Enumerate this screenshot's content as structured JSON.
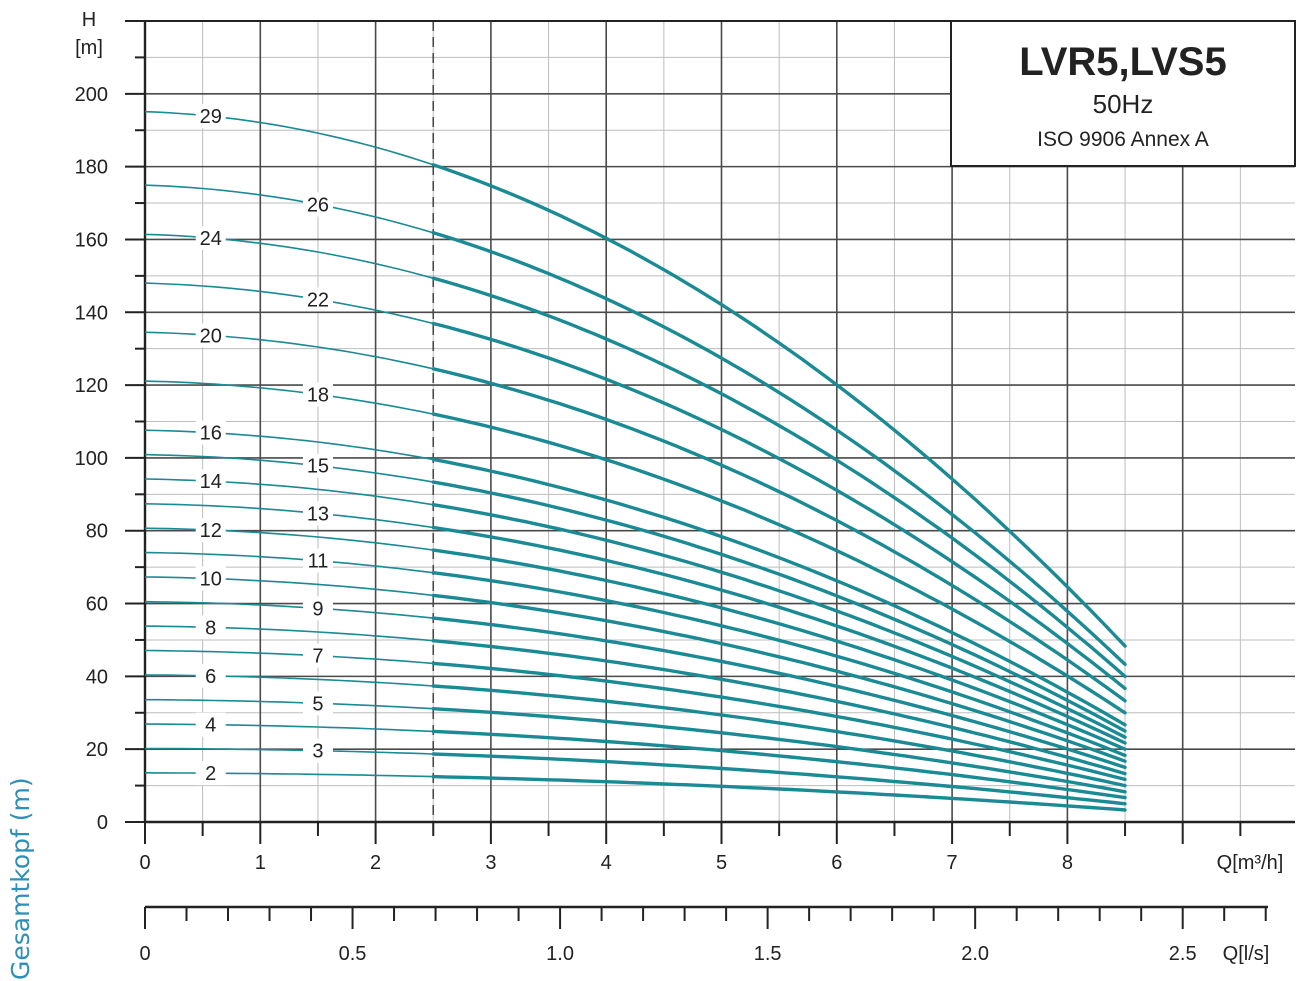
{
  "side_label": "Gesamtkopf (m)",
  "colors": {
    "curve": "#1a8a94",
    "grid": "#4a4a4a",
    "text": "#222222",
    "side_label": "#2e8fb8"
  },
  "title_box": {
    "title": "LVR5,LVS5",
    "frequency": "50Hz",
    "standard": "ISO 9906 Annex A"
  },
  "chart_data": {
    "type": "line",
    "title": "LVR5,LVS5",
    "y_axis": {
      "label_top": "H",
      "label_unit": "[m]",
      "min": 0,
      "max": 200,
      "ticks": [
        0,
        20,
        40,
        60,
        80,
        100,
        120,
        140,
        160,
        180,
        200
      ]
    },
    "x_axis_primary": {
      "label": "Q[m³/h]",
      "ticks": [
        0,
        1,
        2,
        3,
        4,
        5,
        6,
        7,
        8
      ]
    },
    "x_axis_secondary": {
      "label": "Q[l/s]",
      "ticks": [
        "0",
        "0.5",
        "1.0",
        "1.5",
        "2.0",
        "2.5"
      ]
    },
    "grid": true,
    "operating_range_m3h": [
      2.5,
      8.5
    ],
    "series": [
      {
        "name": "2",
        "values": [
          [
            0,
            13.5
          ],
          [
            2.5,
            12.3
          ],
          [
            5,
            9.8
          ],
          [
            8.5,
            3.3
          ]
        ]
      },
      {
        "name": "3",
        "values": [
          [
            0,
            20.2
          ],
          [
            2.5,
            18.5
          ],
          [
            5,
            14.7
          ],
          [
            8.5,
            5.0
          ]
        ]
      },
      {
        "name": "4",
        "values": [
          [
            0,
            26.9
          ],
          [
            2.5,
            24.6
          ],
          [
            5,
            19.6
          ],
          [
            8.5,
            6.7
          ]
        ]
      },
      {
        "name": "5",
        "values": [
          [
            0,
            33.6
          ],
          [
            2.5,
            30.8
          ],
          [
            5,
            24.5
          ],
          [
            8.5,
            8.3
          ]
        ]
      },
      {
        "name": "6",
        "values": [
          [
            0,
            40.4
          ],
          [
            2.5,
            36.9
          ],
          [
            5,
            29.4
          ],
          [
            8.5,
            10.0
          ]
        ]
      },
      {
        "name": "7",
        "values": [
          [
            0,
            47.1
          ],
          [
            2.5,
            43.1
          ],
          [
            5,
            34.3
          ],
          [
            8.5,
            11.7
          ]
        ]
      },
      {
        "name": "8",
        "values": [
          [
            0,
            53.8
          ],
          [
            2.5,
            49.2
          ],
          [
            5,
            39.2
          ],
          [
            8.5,
            13.3
          ]
        ]
      },
      {
        "name": "9",
        "values": [
          [
            0,
            60.5
          ],
          [
            2.5,
            55.4
          ],
          [
            5,
            44.1
          ],
          [
            8.5,
            15.0
          ]
        ]
      },
      {
        "name": "10",
        "values": [
          [
            0,
            67.3
          ],
          [
            2.5,
            61.5
          ],
          [
            5,
            49.0
          ],
          [
            8.5,
            16.7
          ]
        ]
      },
      {
        "name": "11",
        "values": [
          [
            0,
            74.0
          ],
          [
            2.5,
            67.7
          ],
          [
            5,
            53.9
          ],
          [
            8.5,
            18.3
          ]
        ]
      },
      {
        "name": "12",
        "values": [
          [
            0,
            80.7
          ],
          [
            2.5,
            73.8
          ],
          [
            5,
            58.8
          ],
          [
            8.5,
            20.0
          ]
        ]
      },
      {
        "name": "13",
        "values": [
          [
            0,
            87.4
          ],
          [
            2.5,
            80.0
          ],
          [
            5,
            63.7
          ],
          [
            8.5,
            21.7
          ]
        ]
      },
      {
        "name": "14",
        "values": [
          [
            0,
            94.2
          ],
          [
            2.5,
            86.1
          ],
          [
            5,
            68.6
          ],
          [
            8.5,
            23.3
          ]
        ]
      },
      {
        "name": "15",
        "values": [
          [
            0,
            100.9
          ],
          [
            2.5,
            92.3
          ],
          [
            5,
            73.5
          ],
          [
            8.5,
            25.0
          ]
        ]
      },
      {
        "name": "16",
        "values": [
          [
            0,
            107.6
          ],
          [
            2.5,
            98.4
          ],
          [
            5,
            78.4
          ],
          [
            8.5,
            26.7
          ]
        ]
      },
      {
        "name": "18",
        "values": [
          [
            0,
            121.1
          ],
          [
            2.5,
            110.7
          ],
          [
            5,
            88.2
          ],
          [
            8.5,
            30.0
          ]
        ]
      },
      {
        "name": "20",
        "values": [
          [
            0,
            134.5
          ],
          [
            2.5,
            123.0
          ],
          [
            5,
            98.0
          ],
          [
            8.5,
            33.3
          ]
        ]
      },
      {
        "name": "22",
        "values": [
          [
            0,
            148.0
          ],
          [
            2.5,
            135.3
          ],
          [
            5,
            107.8
          ],
          [
            8.5,
            36.7
          ]
        ]
      },
      {
        "name": "24",
        "values": [
          [
            0,
            161.4
          ],
          [
            2.5,
            147.6
          ],
          [
            5,
            117.6
          ],
          [
            8.5,
            40.0
          ]
        ]
      },
      {
        "name": "26",
        "values": [
          [
            0,
            174.9
          ],
          [
            2.5,
            159.9
          ],
          [
            5,
            127.4
          ],
          [
            8.5,
            43.3
          ]
        ]
      },
      {
        "name": "29",
        "values": [
          [
            0,
            195.1
          ],
          [
            2.5,
            178.4
          ],
          [
            5,
            142.1
          ],
          [
            8.5,
            48.3
          ]
        ]
      }
    ]
  }
}
